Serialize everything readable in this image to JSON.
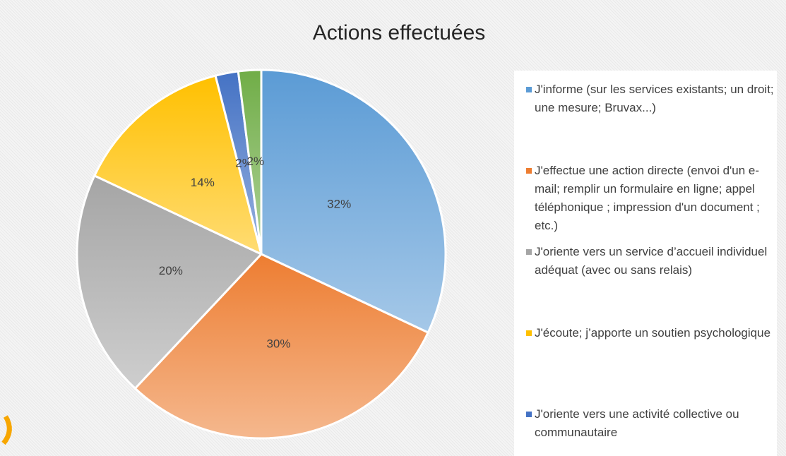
{
  "chart_data": {
    "type": "pie",
    "title": "Actions effectuées",
    "categories": [
      "J'informe (sur les services existants; un droit; une mesure; Bruvax...)",
      "J'effectue une action directe (envoi d'un e-mail; remplir un formulaire en ligne; appel téléphonique ; impression d'un document ; etc.)",
      "J'oriente vers un service d’accueil individuel adéquat (avec ou sans relais)",
      "J'écoute; j’apporte un soutien psychologique",
      "J'oriente vers une activité collective ou communautaire",
      null
    ],
    "values": [
      32,
      30,
      20,
      14,
      2,
      2
    ],
    "value_labels": [
      "32%",
      "30%",
      "20%",
      "14%",
      "2%",
      "2%"
    ],
    "colors": [
      "#5b9bd5",
      "#ed7d31",
      "#a5a5a5",
      "#ffc000",
      "#4472c4",
      "#70ad47"
    ],
    "legend": "right"
  }
}
